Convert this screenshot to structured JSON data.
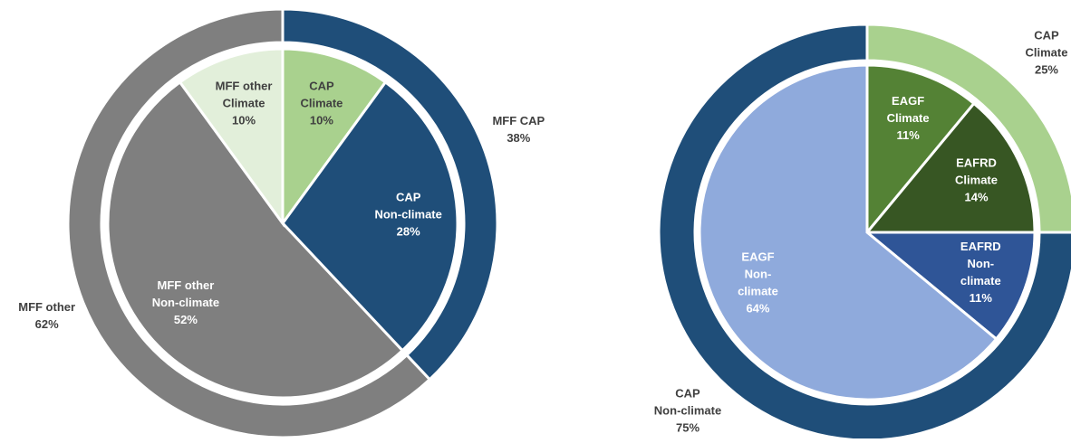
{
  "chart_data": [
    {
      "type": "nested-pie",
      "outer": {
        "labels": [
          [
            "MFF CAP"
          ],
          [
            "MFF other"
          ]
        ],
        "values": [
          38,
          62
        ],
        "value_labels": [
          "38%",
          "62%"
        ],
        "colors": [
          "#1f4e79",
          "#7f7f7f"
        ]
      },
      "inner": {
        "labels": [
          [
            "CAP",
            "Climate"
          ],
          [
            "CAP",
            "Non-climate"
          ],
          [
            "MFF other",
            "Non-climate"
          ],
          [
            "MFF other",
            "Climate"
          ]
        ],
        "values": [
          10,
          28,
          52,
          10
        ],
        "value_labels": [
          "10%",
          "28%",
          "52%",
          "10%"
        ],
        "colors": [
          "#a9d18e",
          "#1f4e79",
          "#7f7f7f",
          "#e2efda"
        ]
      }
    },
    {
      "type": "nested-pie",
      "outer": {
        "labels": [
          [
            "CAP",
            "Climate"
          ],
          [
            "CAP",
            "Non-climate"
          ]
        ],
        "values": [
          25,
          75
        ],
        "value_labels": [
          "25%",
          "75%"
        ],
        "colors": [
          "#a9d18e",
          "#1f4e79"
        ]
      },
      "inner": {
        "labels": [
          [
            "EAGF",
            "Climate"
          ],
          [
            "EAFRD",
            "Climate"
          ],
          [
            "EAFRD",
            "Non-",
            "climate"
          ],
          [
            "EAGF",
            "Non-",
            "climate"
          ]
        ],
        "values": [
          11,
          14,
          11,
          64
        ],
        "value_labels": [
          "11%",
          "14%",
          "11%",
          "64%"
        ],
        "colors": [
          "#548235",
          "#375623",
          "#2f5597",
          "#8faadc"
        ]
      }
    }
  ]
}
